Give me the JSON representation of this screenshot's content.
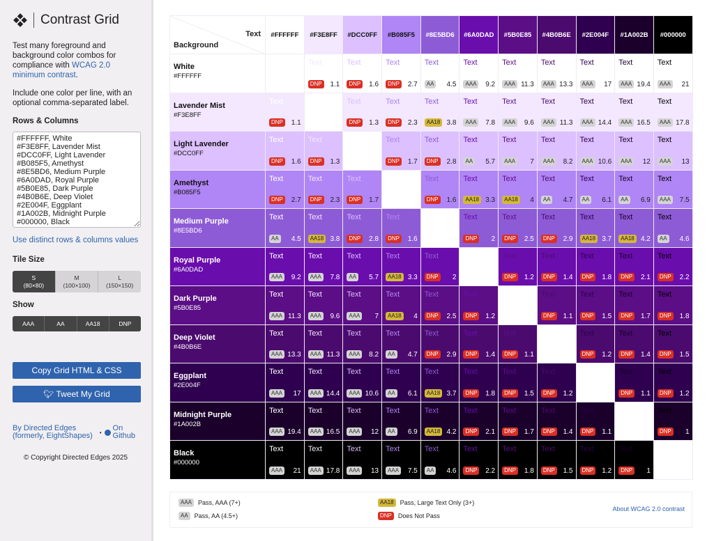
{
  "sidebar": {
    "title": "Contrast Grid",
    "desc_prefix": "Test many foreground and background color combos for compliance with ",
    "desc_link": "WCAG 2.0 minimum contrast",
    "desc_suffix": ".",
    "desc2": "Include one color per line, with an optional comma-separated label.",
    "rows_heading": "Rows & Columns",
    "textarea_value": "#FFFFFF, White\n#F3E8FF, Lavender Mist\n#DCC0FF, Light Lavender\n#B085F5, Amethyst\n#8E5BD6, Medium Purple\n#6A0DAD, Royal Purple\n#5B0E85, Dark Purple\n#4B0B6E, Deep Violet\n#2E004F, Eggplant\n#1A002B, Midnight Purple\n#000000, Black",
    "distinct_link": "Use distinct rows & columns values",
    "tile_heading": "Tile Size",
    "tiles": [
      {
        "label": "S",
        "size": "(80×80)",
        "selected": true
      },
      {
        "label": "M",
        "size": "(100×100)",
        "selected": false
      },
      {
        "label": "L",
        "size": "(150×150)",
        "selected": false
      }
    ],
    "show_heading": "Show",
    "show": [
      "AAA",
      "AA",
      "AA18",
      "DNP"
    ],
    "copy_button": "Copy Grid HTML & CSS",
    "tweet_button": "Tweet My Grid",
    "by_line1": "By Directed Edges",
    "by_line2": "(formerly, EightShapes)",
    "github_line1": "On",
    "github_line2": "Github",
    "copyright": "© Copyright Directed Edges 2025"
  },
  "grid": {
    "corner_text": "Text",
    "corner_background": "Background",
    "sample": "Text",
    "colors": [
      {
        "name": "White",
        "hex": "#FFFFFF"
      },
      {
        "name": "Lavender Mist",
        "hex": "#F3E8FF"
      },
      {
        "name": "Light Lavender",
        "hex": "#DCC0FF"
      },
      {
        "name": "Amethyst",
        "hex": "#B085F5"
      },
      {
        "name": "Medium Purple",
        "hex": "#8E5BD6"
      },
      {
        "name": "Royal Purple",
        "hex": "#6A0DAD"
      },
      {
        "name": "Dark Purple",
        "hex": "#5B0E85"
      },
      {
        "name": "Deep Violet",
        "hex": "#4B0B6E"
      },
      {
        "name": "Eggplant",
        "hex": "#2E004F"
      },
      {
        "name": "Midnight Purple",
        "hex": "#1A002B"
      },
      {
        "name": "Black",
        "hex": "#000000"
      }
    ],
    "ratios": [
      [
        null,
        1.1,
        1.6,
        2.7,
        4.5,
        9.2,
        11.3,
        13.3,
        17,
        19.4,
        21
      ],
      [
        1.1,
        null,
        1.3,
        2.3,
        3.8,
        7.8,
        9.6,
        11.3,
        14.4,
        16.5,
        17.8
      ],
      [
        1.6,
        1.3,
        null,
        1.7,
        2.8,
        5.7,
        7,
        8.2,
        10.6,
        12,
        13
      ],
      [
        2.7,
        2.3,
        1.7,
        null,
        1.6,
        3.3,
        4,
        4.7,
        6.1,
        6.9,
        7.5
      ],
      [
        4.5,
        3.8,
        2.8,
        1.6,
        null,
        2,
        2.5,
        2.9,
        3.7,
        4.2,
        4.6
      ],
      [
        9.2,
        7.8,
        5.7,
        3.3,
        2,
        null,
        1.2,
        1.4,
        1.8,
        2.1,
        2.2
      ],
      [
        11.3,
        9.6,
        7,
        4,
        2.5,
        1.2,
        null,
        1.1,
        1.5,
        1.7,
        1.8
      ],
      [
        13.3,
        11.3,
        8.2,
        4.7,
        2.9,
        1.4,
        1.1,
        null,
        1.2,
        1.4,
        1.5
      ],
      [
        17,
        14.4,
        10.6,
        6.1,
        3.7,
        1.8,
        1.5,
        1.2,
        null,
        1.1,
        1.2
      ],
      [
        19.4,
        16.5,
        12,
        6.9,
        4.2,
        2.1,
        1.7,
        1.4,
        1.1,
        null,
        1
      ],
      [
        21,
        17.8,
        13,
        7.5,
        4.6,
        2.2,
        1.8,
        1.5,
        1.2,
        1,
        null
      ]
    ],
    "badges": [
      [
        null,
        "DNP",
        "DNP",
        "DNP",
        "AA",
        "AAA",
        "AAA",
        "AAA",
        "AAA",
        "AAA",
        "AAA"
      ],
      [
        "DNP",
        null,
        "DNP",
        "DNP",
        "AA18",
        "AAA",
        "AAA",
        "AAA",
        "AAA",
        "AAA",
        "AAA"
      ],
      [
        "DNP",
        "DNP",
        null,
        "DNP",
        "DNP",
        "AA",
        "AAA",
        "AAA",
        "AAA",
        "AAA",
        "AAA"
      ],
      [
        "DNP",
        "DNP",
        "DNP",
        null,
        "DNP",
        "AA18",
        "AA18",
        "AA",
        "AA",
        "AA",
        "AAA"
      ],
      [
        "AA",
        "AA18",
        "DNP",
        "DNP",
        null,
        "DNP",
        "DNP",
        "DNP",
        "AA18",
        "AA18",
        "AA"
      ],
      [
        "AAA",
        "AAA",
        "AA",
        "AA18",
        "DNP",
        null,
        "DNP",
        "DNP",
        "DNP",
        "DNP",
        "DNP"
      ],
      [
        "AAA",
        "AAA",
        "AAA",
        "AA18",
        "DNP",
        "DNP",
        null,
        "DNP",
        "DNP",
        "DNP",
        "DNP"
      ],
      [
        "AAA",
        "AAA",
        "AAA",
        "AA",
        "DNP",
        "DNP",
        "DNP",
        null,
        "DNP",
        "DNP",
        "DNP"
      ],
      [
        "AAA",
        "AAA",
        "AAA",
        "AA",
        "AA18",
        "DNP",
        "DNP",
        "DNP",
        null,
        "DNP",
        "DNP"
      ],
      [
        "AAA",
        "AAA",
        "AAA",
        "AA",
        "AA18",
        "DNP",
        "DNP",
        "DNP",
        "DNP",
        null,
        "DNP"
      ],
      [
        "AAA",
        "AAA",
        "AAA",
        "AAA",
        "AA",
        "DNP",
        "DNP",
        "DNP",
        "DNP",
        "DNP",
        null
      ]
    ]
  },
  "badge_colors": {
    "AAA": "#d4d4d4",
    "AA": "#d4d4d4",
    "AA18": "#d4b83a",
    "DNP": "#d93025"
  },
  "legend": {
    "aaa_badge": "AAA",
    "aaa": "Pass, AAA (7+)",
    "aa_badge": "AA",
    "aa": "Pass, AA (4.5+)",
    "aa18_badge": "AA18",
    "aa18": "Pass, Large Text Only (3+)",
    "dnp_badge": "DNP",
    "dnp": "Does Not Pass",
    "about": "About WCAG 2.0 contrast"
  }
}
